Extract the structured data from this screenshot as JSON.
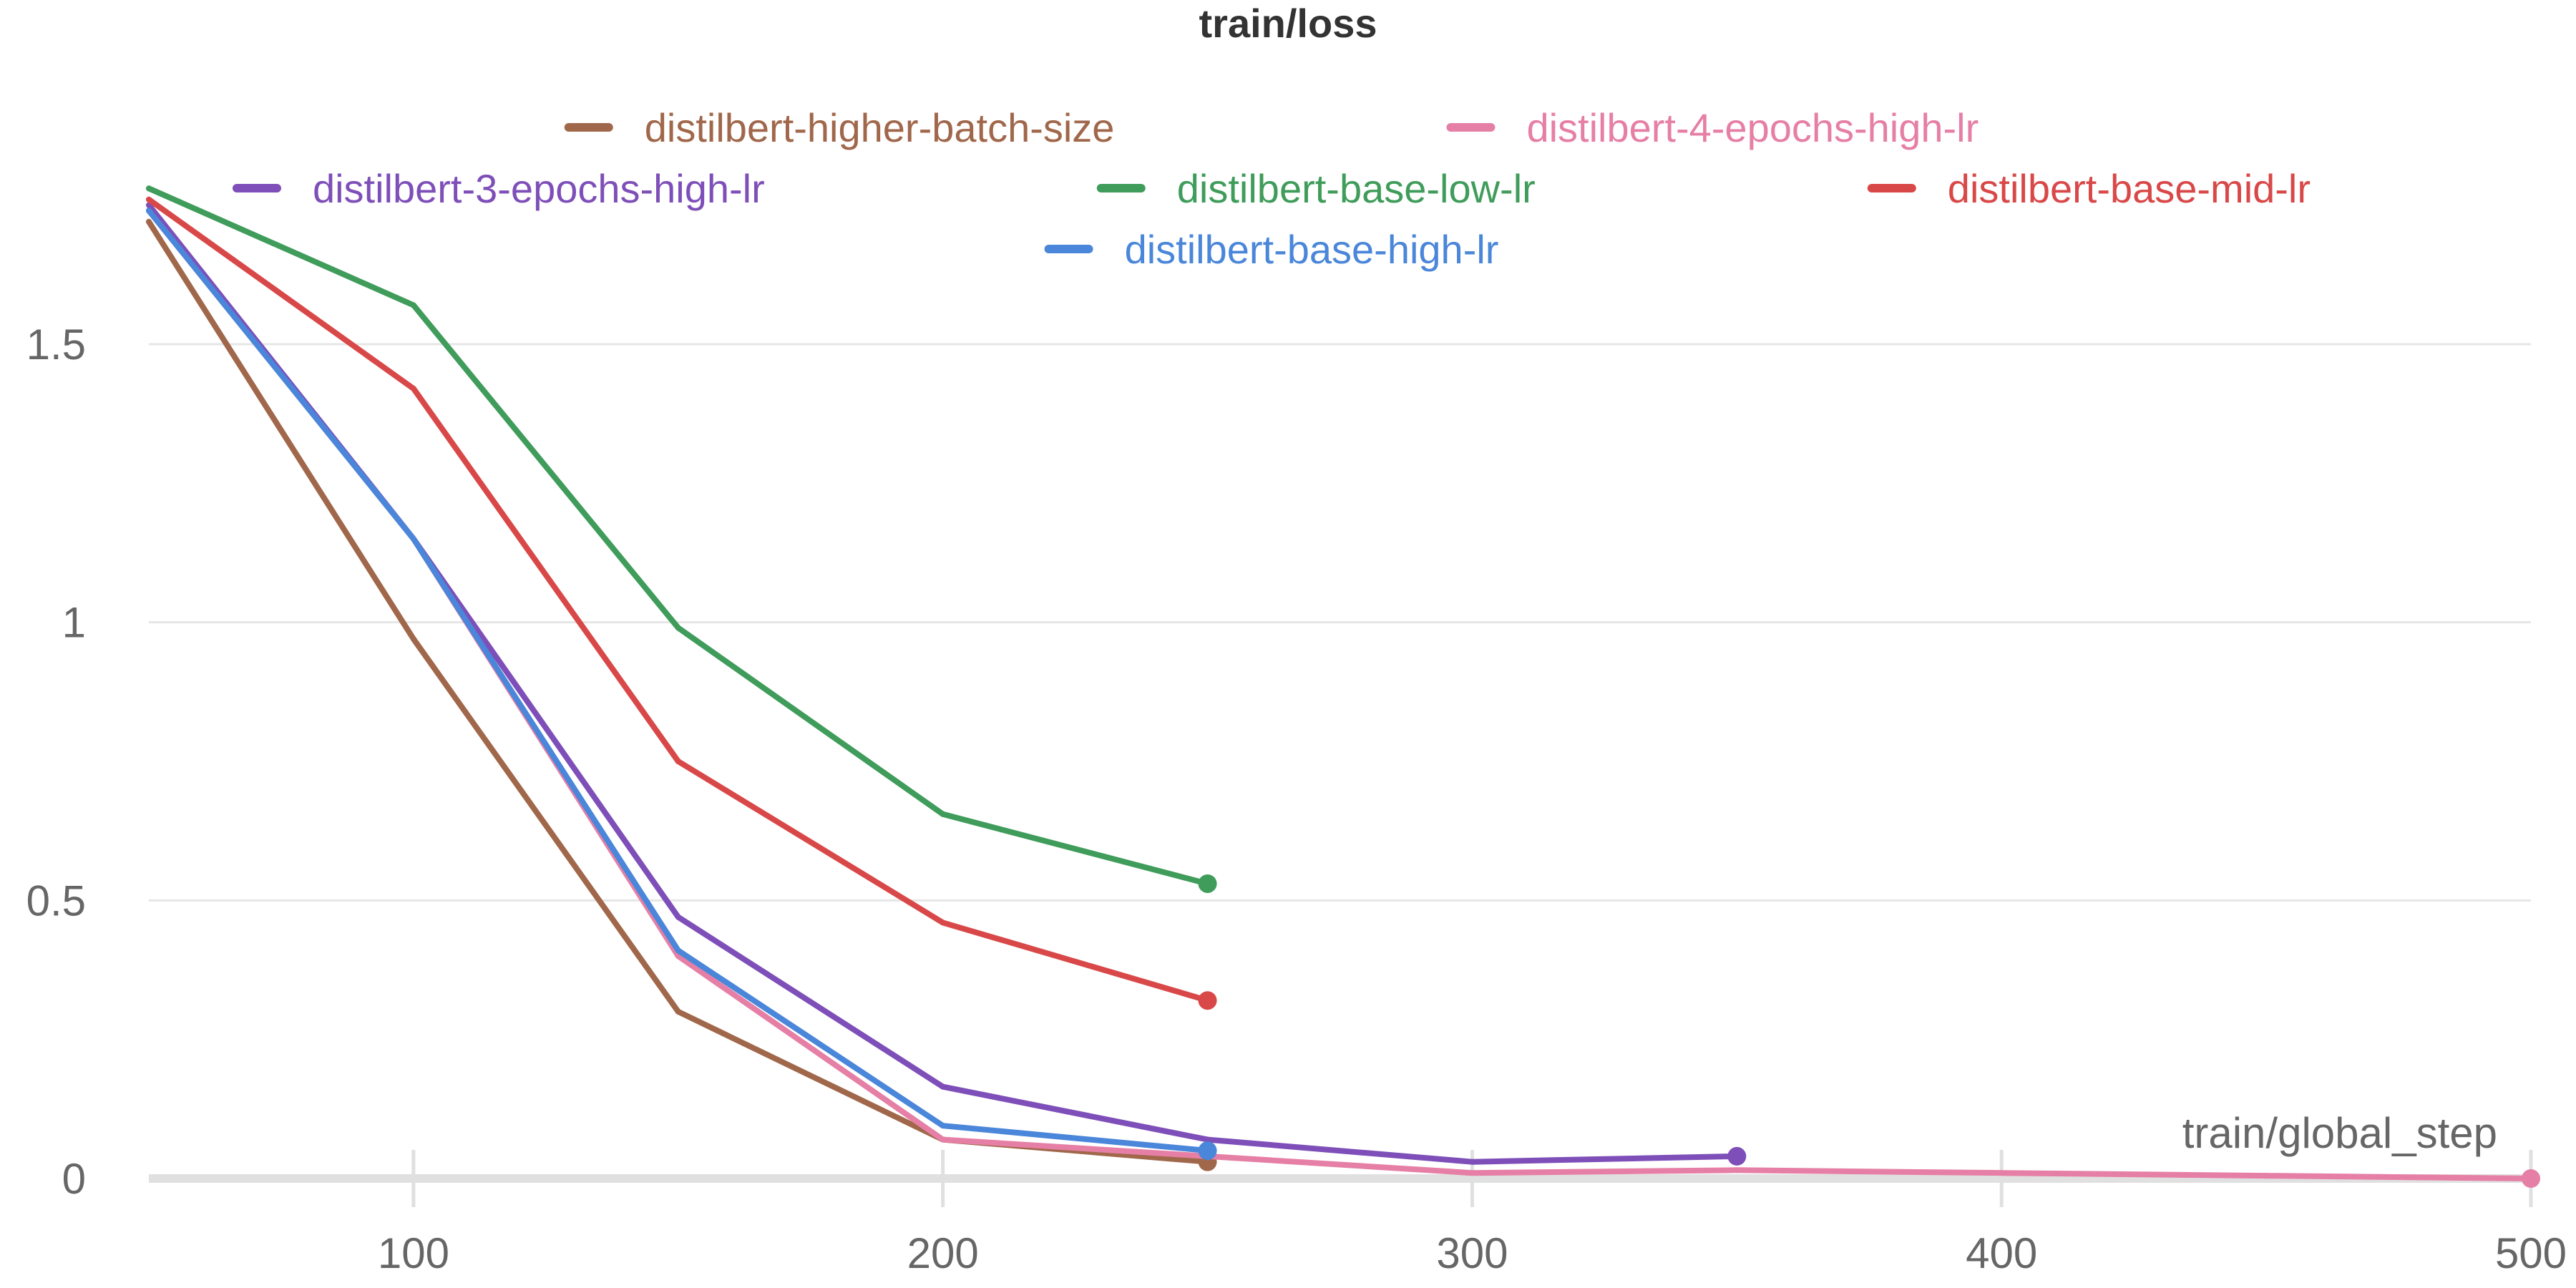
{
  "chart_data": {
    "type": "line",
    "title": "train/loss",
    "xlabel": "train/global_step",
    "ylabel": "",
    "xlim": [
      50,
      500
    ],
    "ylim": [
      0,
      1.9
    ],
    "x_ticks": [
      100,
      200,
      300,
      400,
      500
    ],
    "y_ticks": [
      0,
      0.5,
      1,
      1.5
    ],
    "x_tick_labels": [
      "100",
      "200",
      "300",
      "400",
      "500"
    ],
    "y_tick_labels": [
      "0",
      "0.5",
      "1",
      "1.5"
    ],
    "grid": true,
    "legend_position": "top",
    "series": [
      {
        "name": "distilbert-higher-batch-size",
        "color": "#a0674b",
        "x": [
          50,
          100,
          150,
          200,
          250
        ],
        "y": [
          1.72,
          0.97,
          0.3,
          0.07,
          0.03
        ]
      },
      {
        "name": "distilbert-4-epochs-high-lr",
        "color": "#e67fa5",
        "x": [
          50,
          100,
          150,
          200,
          250,
          300,
          350,
          400,
          450,
          500
        ],
        "y": [
          1.74,
          1.15,
          0.4,
          0.07,
          0.04,
          0.01,
          0.015,
          0.01,
          0.005,
          0.0
        ]
      },
      {
        "name": "distilbert-3-epochs-high-lr",
        "color": "#7e4fb8",
        "x": [
          50,
          100,
          150,
          200,
          250,
          300,
          350
        ],
        "y": [
          1.75,
          1.15,
          0.47,
          0.165,
          0.07,
          0.03,
          0.04
        ]
      },
      {
        "name": "distilbert-base-low-lr",
        "color": "#3f9c5a",
        "x": [
          50,
          100,
          150,
          200,
          250
        ],
        "y": [
          1.78,
          1.57,
          0.99,
          0.655,
          0.53
        ]
      },
      {
        "name": "distilbert-base-mid-lr",
        "color": "#d94848",
        "x": [
          50,
          100,
          150,
          200,
          250
        ],
        "y": [
          1.76,
          1.42,
          0.75,
          0.46,
          0.32
        ]
      },
      {
        "name": "distilbert-base-high-lr",
        "color": "#4a86d9",
        "x": [
          50,
          100,
          150,
          200,
          250
        ],
        "y": [
          1.74,
          1.15,
          0.41,
          0.095,
          0.05
        ]
      }
    ]
  }
}
